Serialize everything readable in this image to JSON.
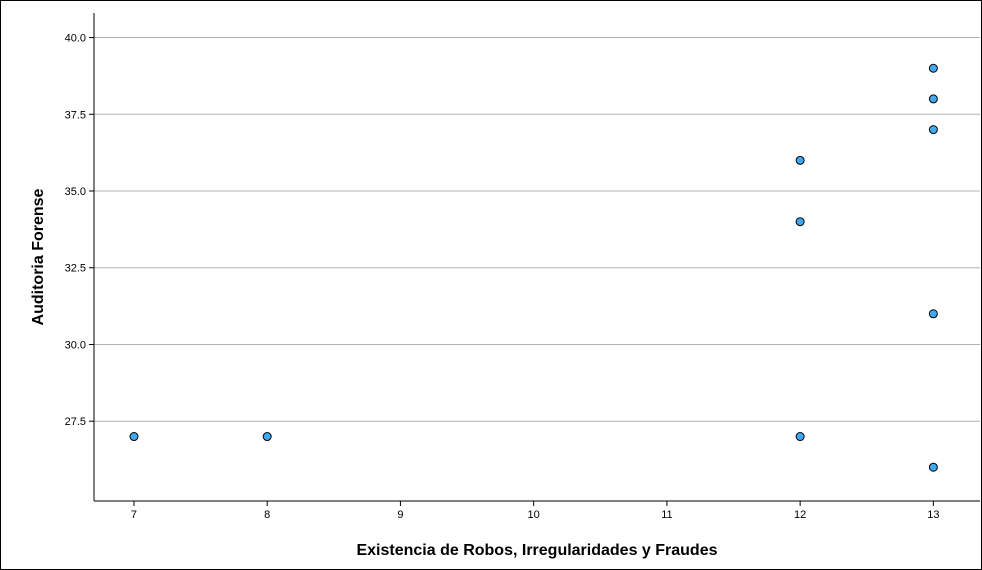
{
  "chart_data": {
    "type": "scatter",
    "title": "",
    "xlabel": "Existencia de Robos, Irregularidades y Fraudes",
    "ylabel": "Auditoria Forense",
    "x_ticks": [
      7,
      8,
      9,
      10,
      11,
      12,
      13
    ],
    "y_ticks": [
      "27.5",
      "30.0",
      "32.5",
      "35.0",
      "37.5",
      "40.0"
    ],
    "xlim": [
      6.7,
      13.35
    ],
    "ylim": [
      24.9,
      40.8
    ],
    "grid": "horizontal",
    "points": [
      {
        "x": 7,
        "y": 27
      },
      {
        "x": 8,
        "y": 27
      },
      {
        "x": 12,
        "y": 36
      },
      {
        "x": 12,
        "y": 34
      },
      {
        "x": 12,
        "y": 27
      },
      {
        "x": 13,
        "y": 39
      },
      {
        "x": 13,
        "y": 38
      },
      {
        "x": 13,
        "y": 37
      },
      {
        "x": 13,
        "y": 31
      },
      {
        "x": 13,
        "y": 26
      }
    ],
    "colors": {
      "marker_fill": "#3FA9F5",
      "marker_stroke": "#000000",
      "grid": "#b3b3b3",
      "axis": "#000000"
    }
  }
}
